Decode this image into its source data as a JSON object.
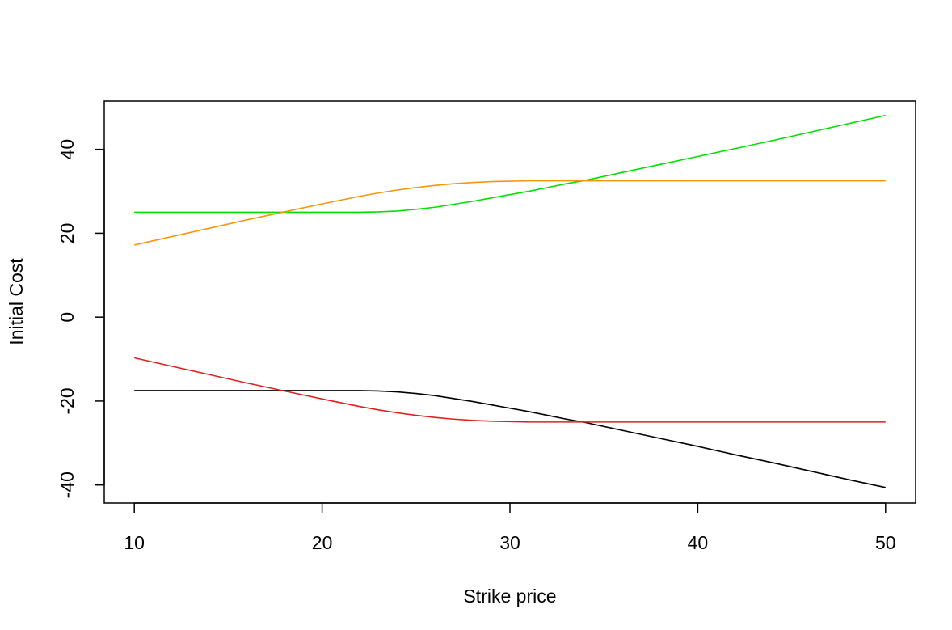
{
  "chart_data": {
    "type": "line",
    "title": "",
    "xlabel": "Strike price",
    "ylabel": "Initial Cost",
    "xlim": [
      8.4,
      51.6
    ],
    "ylim": [
      -44.3,
      51.5
    ],
    "x_ticks": [
      10,
      20,
      30,
      40,
      50
    ],
    "x_tick_labels": [
      "10",
      "20",
      "30",
      "40",
      "50"
    ],
    "y_ticks": [
      -40,
      -20,
      0,
      20,
      40
    ],
    "y_tick_labels": [
      "-40",
      "-20",
      "0",
      "20",
      "40"
    ],
    "grid": false,
    "legend": "none",
    "x": [
      10,
      12,
      14,
      16,
      18,
      20,
      22,
      23,
      24,
      25,
      26,
      27,
      28,
      29,
      30,
      31,
      32,
      33,
      34,
      36,
      38,
      40,
      42,
      44,
      46,
      48,
      50
    ],
    "series": [
      {
        "color": "#00e000",
        "values": [
          25.0,
          25.0,
          25.0,
          25.0,
          25.0,
          25.0,
          25.0,
          25.1,
          25.3,
          25.7,
          26.2,
          26.9,
          27.6,
          28.4,
          29.2,
          30.0,
          30.9,
          31.8,
          32.6,
          34.5,
          36.4,
          38.3,
          40.2,
          42.1,
          44.1,
          46.1,
          48.1
        ]
      },
      {
        "color": "#f5960a",
        "values": [
          17.2,
          19.2,
          21.2,
          23.2,
          25.1,
          27.0,
          28.8,
          29.6,
          30.3,
          30.9,
          31.4,
          31.8,
          32.1,
          32.3,
          32.4,
          32.5,
          32.5,
          32.5,
          32.5,
          32.5,
          32.5,
          32.5,
          32.5,
          32.5,
          32.5,
          32.5,
          32.5
        ]
      },
      {
        "color": "#000000",
        "values": [
          -17.5,
          -17.5,
          -17.5,
          -17.5,
          -17.5,
          -17.5,
          -17.5,
          -17.6,
          -17.8,
          -18.2,
          -18.7,
          -19.4,
          -20.1,
          -20.9,
          -21.7,
          -22.5,
          -23.4,
          -24.3,
          -25.1,
          -27.0,
          -28.9,
          -30.8,
          -32.8,
          -34.7,
          -36.7,
          -38.7,
          -40.6
        ]
      },
      {
        "color": "#e02020",
        "values": [
          -9.7,
          -11.7,
          -13.7,
          -15.7,
          -17.6,
          -19.5,
          -21.3,
          -22.1,
          -22.8,
          -23.4,
          -23.9,
          -24.3,
          -24.6,
          -24.8,
          -24.9,
          -25.0,
          -25.0,
          -25.0,
          -25.0,
          -25.0,
          -25.0,
          -25.0,
          -25.0,
          -25.0,
          -25.0,
          -25.0,
          -25.0
        ]
      }
    ]
  }
}
